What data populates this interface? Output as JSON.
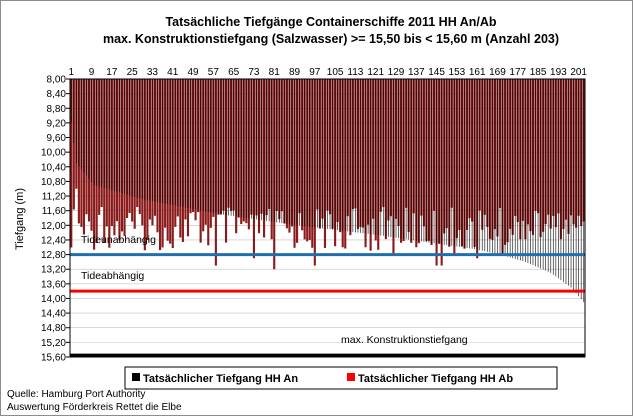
{
  "chart_data": {
    "type": "bar",
    "title": "Tatsächliche Tiefgänge Containerschiffe  2011 HH An/Ab",
    "subtitle": "max. Konstruktionstiefgang  (Salzwasser) >= 15,50 bis < 15,60 m (Anzahl 203)",
    "ylabel": "Tiefgang (m)",
    "xlabel": "",
    "ylim": [
      8.0,
      15.6
    ],
    "y_reversed": true,
    "x_axis_position": "top",
    "grid": true,
    "y_ticks": [
      "8,00",
      "8,40",
      "8,80",
      "9,20",
      "9,60",
      "10,00",
      "10,40",
      "10,80",
      "11,20",
      "11,60",
      "12,00",
      "12,40",
      "12,80",
      "13,20",
      "13,60",
      "14,00",
      "14,40",
      "14,80",
      "15,20",
      "15,60"
    ],
    "x_ticks": [
      "1",
      "9",
      "17",
      "25",
      "33",
      "41",
      "49",
      "57",
      "65",
      "73",
      "81",
      "89",
      "97",
      "105",
      "113",
      "121",
      "129",
      "137",
      "145",
      "153",
      "161",
      "169",
      "177",
      "185",
      "193",
      "201"
    ],
    "n_ships": 203,
    "reference_lines": [
      {
        "label": "Tideunabhängig",
        "value": 12.8,
        "color": "#1f6fb0"
      },
      {
        "label": "Tideabhängig",
        "value": 13.8,
        "color": "#ff0000"
      },
      {
        "label": "max. Konstruktionstiefgang",
        "value": 15.55,
        "color": "#000000"
      }
    ],
    "series": [
      {
        "name": "Tatsächlicher Tiefgang HH An",
        "color": "#000000",
        "values_note": "sorted ascending, 9.2 to 14.1"
      },
      {
        "name": "Tatsächlicher Tiefgang HH Ab",
        "color": "#ff0000",
        "bar_color": "#8b1a1a",
        "values_note": "per ship, mostly 11.5 to 12.8"
      }
    ],
    "an_anchors": [
      [
        1,
        9.2
      ],
      [
        3,
        10.3
      ],
      [
        10,
        10.9
      ],
      [
        30,
        11.3
      ],
      [
        60,
        11.7
      ],
      [
        90,
        12.0
      ],
      [
        120,
        12.25
      ],
      [
        140,
        12.45
      ],
      [
        160,
        12.65
      ],
      [
        170,
        12.8
      ],
      [
        180,
        13.0
      ],
      [
        190,
        13.3
      ],
      [
        198,
        13.7
      ],
      [
        203,
        14.1
      ]
    ],
    "ab_spikes": [
      [
        3,
        11.0
      ],
      [
        13,
        11.5
      ],
      [
        23,
        11.8
      ],
      [
        31,
        12.4
      ],
      [
        40,
        12.5
      ],
      [
        47,
        12.3
      ],
      [
        58,
        13.1
      ],
      [
        73,
        12.9
      ],
      [
        81,
        13.2
      ],
      [
        87,
        12.2
      ],
      [
        97,
        13.1
      ],
      [
        108,
        12.6
      ],
      [
        117,
        12.6
      ],
      [
        128,
        12.8
      ],
      [
        137,
        12.6
      ],
      [
        145,
        13.1
      ],
      [
        147,
        13.1
      ],
      [
        152,
        12.8
      ],
      [
        161,
        12.9
      ],
      [
        171,
        12.8
      ]
    ]
  },
  "legend": {
    "an": "Tatsächlicher Tiefgang HH An",
    "ab": "Tatsächlicher Tiefgang HH Ab"
  },
  "footer": {
    "source": "Quelle: Hamburg Port Authority",
    "analysis": "Auswertung Förderkreis Rettet die Elbe"
  },
  "colors": {
    "bar_ab": "#8b1a1a",
    "an_line": "#000000",
    "tide_free": "#1f6fb0",
    "tide_dep": "#ff0000",
    "plot_bg": "#ffffff",
    "grid": "#c0c0c0"
  }
}
